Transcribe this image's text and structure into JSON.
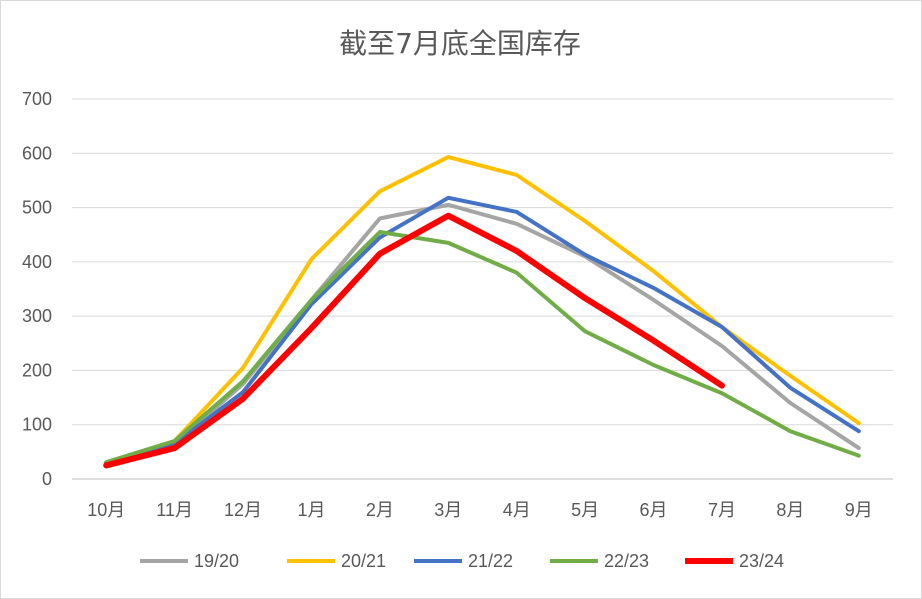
{
  "chart_data": {
    "type": "line",
    "title": "截至7月底全国库存",
    "xlabel": "",
    "ylabel": "",
    "categories": [
      "10月",
      "11月",
      "12月",
      "1月",
      "2月",
      "3月",
      "4月",
      "5月",
      "6月",
      "7月",
      "8月",
      "9月"
    ],
    "ylim": [
      0,
      700
    ],
    "yticks": [
      0,
      100,
      200,
      300,
      400,
      500,
      600,
      700
    ],
    "grid": true,
    "legend": "bottom",
    "series": [
      {
        "name": "19/20",
        "color": "#a5a5a5",
        "values": [
          27,
          65,
          175,
          330,
          480,
          505,
          470,
          410,
          330,
          245,
          140,
          57
        ]
      },
      {
        "name": "20/21",
        "color": "#ffc000",
        "values": [
          30,
          70,
          205,
          405,
          530,
          593,
          560,
          475,
          383,
          280,
          190,
          103
        ]
      },
      {
        "name": "21/22",
        "color": "#4472c4",
        "values": [
          30,
          65,
          160,
          322,
          445,
          518,
          492,
          413,
          352,
          280,
          168,
          88
        ]
      },
      {
        "name": "22/23",
        "color": "#70ad47",
        "values": [
          31,
          70,
          180,
          330,
          455,
          435,
          380,
          272,
          210,
          158,
          88,
          43
        ]
      },
      {
        "name": "23/24",
        "color": "#ff0000",
        "values": [
          25,
          57,
          148,
          278,
          415,
          485,
          420,
          333,
          255,
          172,
          null,
          null
        ]
      }
    ]
  }
}
